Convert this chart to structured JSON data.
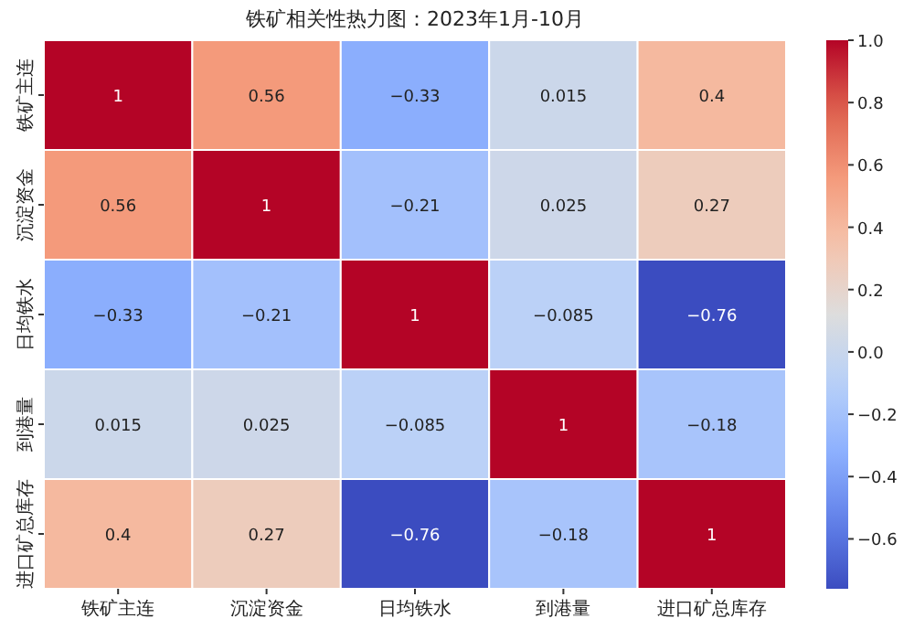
{
  "chart_data": {
    "type": "heatmap",
    "title": "铁矿相关性热力图：2023年1月-10月",
    "categories": [
      "铁矿主连",
      "沉淀资金",
      "日均铁水",
      "到港量",
      "进口矿总库存"
    ],
    "y_categories": [
      "铁矿主连",
      "沉淀资金",
      "日均铁水",
      "到港量",
      "进口矿总库存"
    ],
    "cells": [
      [
        1,
        0.56,
        -0.33,
        0.015,
        0.4
      ],
      [
        0.56,
        1,
        -0.21,
        0.025,
        0.27
      ],
      [
        -0.33,
        -0.21,
        1,
        -0.085,
        -0.76
      ],
      [
        0.015,
        0.025,
        -0.085,
        1,
        -0.18
      ],
      [
        0.4,
        0.27,
        -0.76,
        -0.18,
        1
      ]
    ],
    "data_labels": true,
    "clim": [
      -0.76,
      1
    ],
    "cticks": [
      {
        "value": -0.6,
        "label": "−0.6"
      },
      {
        "value": -0.4,
        "label": "−0.4"
      },
      {
        "value": -0.2,
        "label": "−0.2"
      },
      {
        "value": 0,
        "label": "0.0"
      },
      {
        "value": 0.2,
        "label": "0.2"
      },
      {
        "value": 0.4,
        "label": "0.4"
      },
      {
        "value": 0.6,
        "label": "0.6"
      },
      {
        "value": 0.8,
        "label": "0.8"
      },
      {
        "value": 1,
        "label": "1.0"
      }
    ]
  }
}
